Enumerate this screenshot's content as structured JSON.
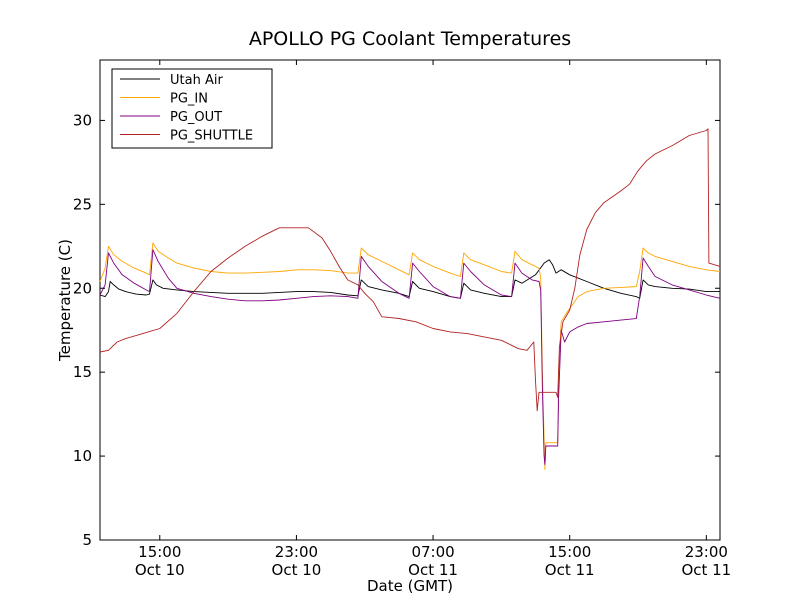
{
  "chart_data": {
    "type": "line",
    "title": "APOLLO PG Coolant Temperatures",
    "xlabel": "Date (GMT)",
    "ylabel": "Temperature (C)",
    "xlim": [
      11.5,
      47.8
    ],
    "ylim": [
      5,
      33.6
    ],
    "y_ticks": [
      5,
      10,
      15,
      20,
      25,
      30
    ],
    "x_ticks": [
      {
        "x": 15,
        "time": "15:00",
        "date": "Oct 10"
      },
      {
        "x": 23,
        "time": "23:00",
        "date": "Oct 10"
      },
      {
        "x": 31,
        "time": "07:00",
        "date": "Oct 11"
      },
      {
        "x": 39,
        "time": "15:00",
        "date": "Oct 11"
      },
      {
        "x": 47,
        "time": "23:00",
        "date": "Oct 11"
      }
    ],
    "x_units": "hours since Oct 10 00:00 GMT",
    "legend_position": "top-left",
    "grid": false,
    "series": [
      {
        "name": "Utah Air",
        "color": "#000000",
        "points": [
          [
            11.5,
            19.6
          ],
          [
            11.8,
            19.5
          ],
          [
            12.0,
            19.8
          ],
          [
            12.1,
            20.4
          ],
          [
            12.3,
            20.2
          ],
          [
            12.6,
            19.95
          ],
          [
            13.0,
            19.8
          ],
          [
            13.6,
            19.65
          ],
          [
            14.2,
            19.6
          ],
          [
            14.4,
            19.65
          ],
          [
            14.6,
            20.5
          ],
          [
            14.8,
            20.2
          ],
          [
            15.2,
            20.0
          ],
          [
            16,
            19.9
          ],
          [
            17,
            19.8
          ],
          [
            18,
            19.75
          ],
          [
            19,
            19.7
          ],
          [
            20,
            19.7
          ],
          [
            21,
            19.7
          ],
          [
            22,
            19.75
          ],
          [
            23,
            19.8
          ],
          [
            24,
            19.8
          ],
          [
            25,
            19.75
          ],
          [
            26,
            19.6
          ],
          [
            26.6,
            19.55
          ],
          [
            26.8,
            20.5
          ],
          [
            27.2,
            20.1
          ],
          [
            28,
            19.9
          ],
          [
            29,
            19.7
          ],
          [
            29.6,
            19.5
          ],
          [
            29.8,
            20.4
          ],
          [
            30.2,
            20.0
          ],
          [
            31,
            19.8
          ],
          [
            32,
            19.5
          ],
          [
            32.6,
            19.4
          ],
          [
            32.8,
            20.3
          ],
          [
            33.2,
            19.9
          ],
          [
            34,
            19.7
          ],
          [
            35,
            19.5
          ],
          [
            35.6,
            19.5
          ],
          [
            35.8,
            20.5
          ],
          [
            36.2,
            20.3
          ],
          [
            37,
            20.8
          ],
          [
            37.5,
            21.5
          ],
          [
            37.8,
            21.7
          ],
          [
            38.0,
            21.4
          ],
          [
            38.2,
            20.9
          ],
          [
            38.5,
            21.1
          ],
          [
            39,
            20.8
          ],
          [
            40,
            20.4
          ],
          [
            41,
            20.0
          ],
          [
            42,
            19.7
          ],
          [
            42.9,
            19.5
          ],
          [
            43.1,
            19.4
          ],
          [
            43.3,
            20.5
          ],
          [
            43.6,
            20.2
          ],
          [
            44,
            20.1
          ],
          [
            45,
            20.0
          ],
          [
            46,
            19.95
          ],
          [
            47,
            19.8
          ],
          [
            47.8,
            19.8
          ]
        ]
      },
      {
        "name": "PG_IN",
        "color": "#ffa500",
        "points": [
          [
            11.5,
            20.4
          ],
          [
            11.8,
            21.2
          ],
          [
            12.0,
            22.5
          ],
          [
            12.3,
            22.0
          ],
          [
            12.8,
            21.6
          ],
          [
            13.5,
            21.2
          ],
          [
            14.2,
            20.9
          ],
          [
            14.4,
            20.8
          ],
          [
            14.6,
            22.7
          ],
          [
            14.9,
            22.2
          ],
          [
            15.5,
            21.8
          ],
          [
            16,
            21.5
          ],
          [
            17,
            21.2
          ],
          [
            18,
            21.0
          ],
          [
            19,
            20.9
          ],
          [
            20,
            20.9
          ],
          [
            21,
            20.95
          ],
          [
            22,
            21.0
          ],
          [
            23,
            21.1
          ],
          [
            24,
            21.1
          ],
          [
            25,
            21.05
          ],
          [
            26,
            20.9
          ],
          [
            26.6,
            20.9
          ],
          [
            26.8,
            22.4
          ],
          [
            27.2,
            22.0
          ],
          [
            28,
            21.6
          ],
          [
            29,
            21.1
          ],
          [
            29.6,
            20.8
          ],
          [
            29.8,
            22.1
          ],
          [
            30.2,
            21.7
          ],
          [
            31,
            21.3
          ],
          [
            32,
            20.9
          ],
          [
            32.6,
            20.7
          ],
          [
            32.8,
            22.1
          ],
          [
            33.2,
            21.7
          ],
          [
            34,
            21.4
          ],
          [
            35,
            21.0
          ],
          [
            35.6,
            20.9
          ],
          [
            35.8,
            22.2
          ],
          [
            36.2,
            21.7
          ],
          [
            36.8,
            21.4
          ],
          [
            37.2,
            21.2
          ],
          [
            37.3,
            20.6
          ],
          [
            37.4,
            15.0
          ],
          [
            37.5,
            11.0
          ],
          [
            37.55,
            9.2
          ],
          [
            37.6,
            10.8
          ],
          [
            38.2,
            10.8
          ],
          [
            38.3,
            10.8
          ],
          [
            38.35,
            15.0
          ],
          [
            38.5,
            18.0
          ],
          [
            38.8,
            18.5
          ],
          [
            39,
            18.8
          ],
          [
            39.5,
            19.5
          ],
          [
            40,
            19.8
          ],
          [
            41,
            20.0
          ],
          [
            42,
            20.05
          ],
          [
            42.9,
            20.1
          ],
          [
            43.1,
            21.0
          ],
          [
            43.3,
            22.4
          ],
          [
            43.6,
            22.1
          ],
          [
            44,
            21.9
          ],
          [
            45,
            21.6
          ],
          [
            46,
            21.3
          ],
          [
            47,
            21.1
          ],
          [
            47.8,
            21.0
          ]
        ]
      },
      {
        "name": "PG_OUT",
        "color": "#800080",
        "points": [
          [
            11.5,
            19.6
          ],
          [
            11.8,
            20.2
          ],
          [
            12.0,
            22.1
          ],
          [
            12.3,
            21.5
          ],
          [
            12.8,
            20.8
          ],
          [
            13.5,
            20.3
          ],
          [
            14.2,
            19.9
          ],
          [
            14.4,
            19.8
          ],
          [
            14.6,
            22.3
          ],
          [
            14.9,
            21.6
          ],
          [
            15.5,
            20.6
          ],
          [
            16,
            20.0
          ],
          [
            17,
            19.7
          ],
          [
            18,
            19.5
          ],
          [
            19,
            19.35
          ],
          [
            20,
            19.25
          ],
          [
            21,
            19.25
          ],
          [
            22,
            19.3
          ],
          [
            23,
            19.4
          ],
          [
            24,
            19.5
          ],
          [
            25,
            19.55
          ],
          [
            26,
            19.5
          ],
          [
            26.6,
            19.4
          ],
          [
            26.8,
            21.9
          ],
          [
            27.2,
            21.3
          ],
          [
            28,
            20.4
          ],
          [
            29,
            19.7
          ],
          [
            29.6,
            19.4
          ],
          [
            29.8,
            21.5
          ],
          [
            30.2,
            21.0
          ],
          [
            31,
            20.1
          ],
          [
            32,
            19.5
          ],
          [
            32.6,
            19.4
          ],
          [
            32.8,
            21.5
          ],
          [
            33.2,
            21.0
          ],
          [
            34,
            20.2
          ],
          [
            35,
            19.6
          ],
          [
            35.6,
            19.5
          ],
          [
            35.8,
            21.5
          ],
          [
            36.2,
            20.9
          ],
          [
            36.8,
            20.5
          ],
          [
            37.2,
            20.4
          ],
          [
            37.3,
            19.9
          ],
          [
            37.4,
            14.0
          ],
          [
            37.5,
            10.0
          ],
          [
            37.55,
            9.5
          ],
          [
            37.6,
            10.6
          ],
          [
            38.2,
            10.6
          ],
          [
            38.3,
            10.6
          ],
          [
            38.35,
            13.5
          ],
          [
            38.5,
            17.5
          ],
          [
            38.7,
            16.8
          ],
          [
            39,
            17.4
          ],
          [
            39.5,
            17.7
          ],
          [
            40,
            17.9
          ],
          [
            41,
            18.0
          ],
          [
            42,
            18.1
          ],
          [
            42.9,
            18.2
          ],
          [
            43.1,
            19.5
          ],
          [
            43.3,
            21.8
          ],
          [
            43.6,
            21.3
          ],
          [
            44,
            20.7
          ],
          [
            45,
            20.2
          ],
          [
            46,
            19.9
          ],
          [
            47,
            19.6
          ],
          [
            47.8,
            19.4
          ]
        ]
      },
      {
        "name": "PG_SHUTTLE",
        "color": "#b22222",
        "points": [
          [
            11.5,
            16.2
          ],
          [
            12.0,
            16.3
          ],
          [
            12.5,
            16.8
          ],
          [
            13,
            17.0
          ],
          [
            14,
            17.3
          ],
          [
            15,
            17.6
          ],
          [
            16,
            18.5
          ],
          [
            17,
            19.8
          ],
          [
            18,
            21.0
          ],
          [
            19,
            21.8
          ],
          [
            20,
            22.5
          ],
          [
            21,
            23.1
          ],
          [
            22,
            23.6
          ],
          [
            23,
            23.6
          ],
          [
            23.7,
            23.6
          ],
          [
            24.5,
            23.0
          ],
          [
            25,
            22.2
          ],
          [
            25.5,
            21.3
          ],
          [
            26,
            20.5
          ],
          [
            26.6,
            20.2
          ],
          [
            27,
            19.7
          ],
          [
            27.5,
            19.2
          ],
          [
            28,
            18.3
          ],
          [
            28.5,
            18.25
          ],
          [
            29,
            18.2
          ],
          [
            30,
            18.0
          ],
          [
            31,
            17.6
          ],
          [
            32,
            17.4
          ],
          [
            33,
            17.3
          ],
          [
            34,
            17.1
          ],
          [
            35,
            16.9
          ],
          [
            35.6,
            16.6
          ],
          [
            36,
            16.4
          ],
          [
            36.5,
            16.3
          ],
          [
            36.9,
            16.8
          ],
          [
            37.0,
            14.5
          ],
          [
            37.1,
            12.7
          ],
          [
            37.2,
            13.8
          ],
          [
            38.2,
            13.8
          ],
          [
            38.3,
            13.5
          ],
          [
            38.4,
            16.5
          ],
          [
            38.6,
            18.0
          ],
          [
            39,
            18.7
          ],
          [
            39.3,
            20.0
          ],
          [
            39.6,
            22.0
          ],
          [
            40,
            23.5
          ],
          [
            40.5,
            24.5
          ],
          [
            41,
            25.1
          ],
          [
            42,
            25.8
          ],
          [
            42.5,
            26.2
          ],
          [
            43,
            27.0
          ],
          [
            43.5,
            27.6
          ],
          [
            44,
            28.0
          ],
          [
            45,
            28.5
          ],
          [
            46,
            29.1
          ],
          [
            47,
            29.4
          ],
          [
            47.1,
            29.5
          ],
          [
            47.15,
            21.5
          ],
          [
            47.8,
            21.3
          ]
        ]
      }
    ]
  }
}
